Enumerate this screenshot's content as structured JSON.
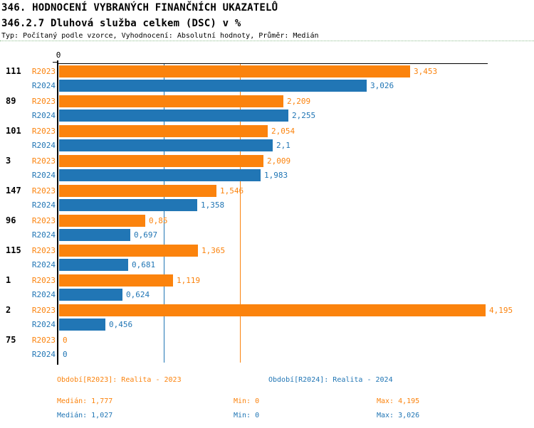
{
  "header": {
    "title": "346. HODNOCENÍ VYBRANÝCH FINANČNÍCH UKAZATELŮ",
    "subtitle": "346.2.7 Dluhová služba celkem (DSC) v %",
    "meta": "Typ: Počítaný podle vzorce, Vyhodnocení: Absolutní hodnoty, Průměr: Medián"
  },
  "colors": {
    "r2023": "#FB830D",
    "r2024": "#2176B5",
    "axis": "#000000",
    "divider": "#8fbf8f"
  },
  "chart_data": {
    "type": "bar",
    "orientation": "horizontal",
    "title": "346.2.7 Dluhová služba celkem (DSC) v %",
    "xlabel": "",
    "ylabel": "",
    "xlim": [
      0,
      4.195
    ],
    "x_tick_labels": [
      "0"
    ],
    "grid": false,
    "legend_position": "bottom",
    "categories": [
      "111",
      "89",
      "101",
      "3",
      "147",
      "96",
      "115",
      "1",
      "2",
      "75"
    ],
    "series": [
      {
        "name": "R2023",
        "color": "#FB830D",
        "values": [
          3.453,
          2.209,
          2.054,
          2.009,
          1.546,
          0.85,
          1.365,
          1.119,
          4.195,
          0
        ],
        "labels": [
          "3,453",
          "2,209",
          "2,054",
          "2,009",
          "1,546",
          "0,85",
          "1,365",
          "1,119",
          "4,195",
          "0"
        ]
      },
      {
        "name": "R2024",
        "color": "#2176B5",
        "values": [
          3.026,
          2.255,
          2.1,
          1.983,
          1.358,
          0.697,
          0.681,
          0.624,
          0.456,
          0
        ],
        "labels": [
          "3,026",
          "2,255",
          "2,1",
          "1,983",
          "1,358",
          "0,697",
          "0,681",
          "0,624",
          "0,456",
          "0"
        ]
      }
    ],
    "reference_lines": [
      {
        "series": "R2023",
        "label": "Medián",
        "value": 1.777,
        "color": "#FB830D"
      },
      {
        "series": "R2024",
        "label": "Medián",
        "value": 1.027,
        "color": "#2176B5"
      }
    ]
  },
  "footer": {
    "periods": [
      {
        "series": "R2023",
        "label": "Období[R2023]: Realita - 2023"
      },
      {
        "series": "R2024",
        "label": "Období[R2024]: Realita - 2024"
      }
    ],
    "stats": [
      {
        "series": "R2023",
        "median": "Medián: 1,777",
        "min": "Min: 0",
        "max": "Max: 4,195"
      },
      {
        "series": "R2024",
        "median": "Medián: 1,027",
        "min": "Min: 0",
        "max": "Max: 3,026"
      }
    ]
  }
}
